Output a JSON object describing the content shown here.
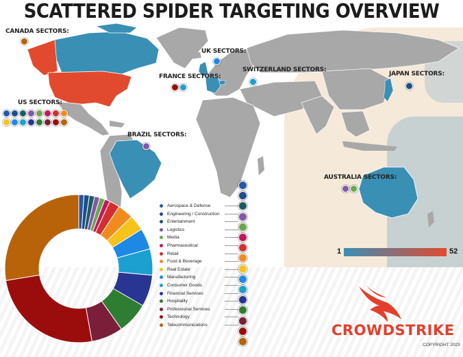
{
  "title": "SCATTERED SPIDER TARGETING OVERVIEW",
  "colors": {
    "land": "#a8a8a8",
    "low": "#3a8fb5",
    "high": "#e24a2f",
    "brand": "#e2402c"
  },
  "regions": [
    {
      "label": "CANADA SECTORS:",
      "icons": [
        "telecommunications"
      ]
    },
    {
      "label": "US SECTORS:",
      "icons": [
        "aerospace-defense",
        "engineering-construction",
        "entertainment",
        "logistics",
        "media",
        "pharmaceutical",
        "retail",
        "food-beverage",
        "real-estate",
        "manufacturing",
        "consumer-goods",
        "financial-services",
        "hospitality",
        "professional-services",
        "technology",
        "telecommunications"
      ]
    },
    {
      "label": "BRAZIL SECTORS:",
      "icons": [
        "logistics"
      ]
    },
    {
      "label": "UK SECTORS:",
      "icons": [
        "manufacturing"
      ]
    },
    {
      "label": "FRANCE SECTORS:",
      "icons": [
        "technology",
        "consumer-goods"
      ]
    },
    {
      "label": "SWITZERLAND SECTORS:",
      "icons": [
        "consumer-goods"
      ]
    },
    {
      "label": "JAPAN SECTORS:",
      "icons": [
        "engineering-construction"
      ]
    },
    {
      "label": "AUSTRALIA SECTORS:",
      "icons": [
        "logistics",
        "media"
      ]
    }
  ],
  "legend": [
    {
      "label": "Aerospace & Defense",
      "color": "#2559a8",
      "share": 1
    },
    {
      "label": "Engineering / Construction",
      "color": "#1f4c8a",
      "share": 1
    },
    {
      "label": "Entertainment",
      "color": "#1c5c60",
      "share": 1
    },
    {
      "label": "Logistics",
      "color": "#8357a8",
      "share": 1
    },
    {
      "label": "Media",
      "color": "#6aa84f",
      "share": 1
    },
    {
      "label": "Pharmaceutical",
      "color": "#c2185b",
      "share": 1
    },
    {
      "label": "Retail",
      "color": "#d32f2f",
      "share": 2
    },
    {
      "label": "Food & Beverage",
      "color": "#f08c1e",
      "share": 3
    },
    {
      "label": "Real Estate",
      "color": "#f7c21b",
      "share": 3
    },
    {
      "label": "Manufacturing",
      "color": "#1e88e5",
      "share": 4
    },
    {
      "label": "Consumer Goods",
      "color": "#1ba0cf",
      "share": 5
    },
    {
      "label": "Financial Services",
      "color": "#283593",
      "share": 6
    },
    {
      "label": "Hospitality",
      "color": "#2e7d32",
      "share": 6
    },
    {
      "label": "Professional Services",
      "color": "#7b1e3a",
      "share": 6
    },
    {
      "label": "Technology",
      "color": "#9b0d0d",
      "share": 22
    },
    {
      "label": "Telecommunications",
      "color": "#b8620a",
      "share": 24
    }
  ],
  "scale": {
    "min": "1",
    "max": "52"
  },
  "brand": "CROWDSTRIKE",
  "copyright": "COPYRIGHT 2023"
}
